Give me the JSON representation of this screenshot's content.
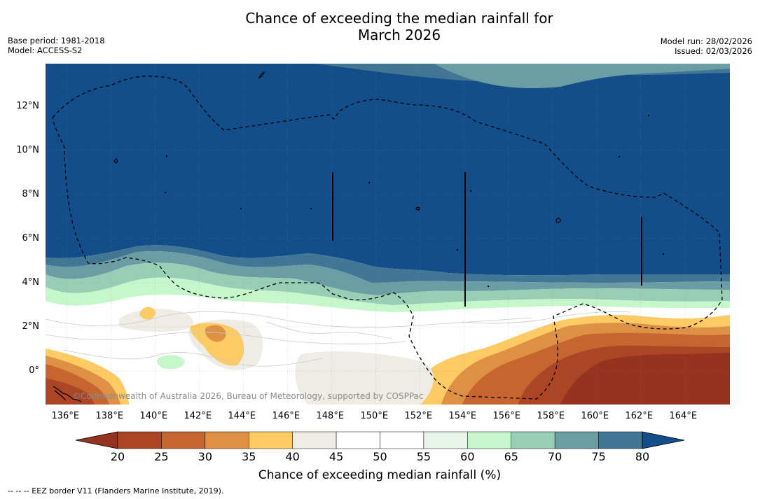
{
  "title": {
    "line1": "Chance of exceeding the median rainfall for",
    "line2": "March 2026"
  },
  "meta": {
    "base_period": "Base period: 1981-2018",
    "model": "Model: ACCESS-S2",
    "model_run": "Model run: 28/02/2026",
    "issued": "Issued: 02/03/2026"
  },
  "map": {
    "copyright": "©Commonwealth of Australia 2026, Bureau of Meteorology, supported by COSPPac",
    "lon_labels": [
      "136°E",
      "138°E",
      "140°E",
      "142°E",
      "144°E",
      "146°E",
      "148°E",
      "150°E",
      "152°E",
      "154°E",
      "156°E",
      "158°E",
      "160°E",
      "162°E",
      "164°E"
    ],
    "lat_labels": [
      "12°N",
      "10°N",
      "8°N",
      "6°N",
      "4°N",
      "2°N",
      "0°"
    ]
  },
  "colorbar": {
    "title": "Chance of exceeding median rainfall (%)",
    "ticks": [
      "20",
      "25",
      "30",
      "35",
      "40",
      "45",
      "50",
      "55",
      "60",
      "65",
      "70",
      "75",
      "80"
    ],
    "colors": {
      "below_20": "#953320",
      "c20_25": "#ab4526",
      "c25_30": "#c66530",
      "c30_35": "#de9144",
      "c35_40": "#fdca64",
      "c40_45": "#eeece5",
      "c45_50": "#ffffff",
      "c50_55": "#ffffff",
      "c55_60": "#e8f4e9",
      "c60_65": "#c6f7cb",
      "c65_70": "#98ceb6",
      "c70_75": "#6a9ea4",
      "c75_80": "#417795",
      "above_80": "#134e8b"
    }
  },
  "footnote": "--  --  -- EEZ border V11 (Flanders Marine Institute, 2019)."
}
